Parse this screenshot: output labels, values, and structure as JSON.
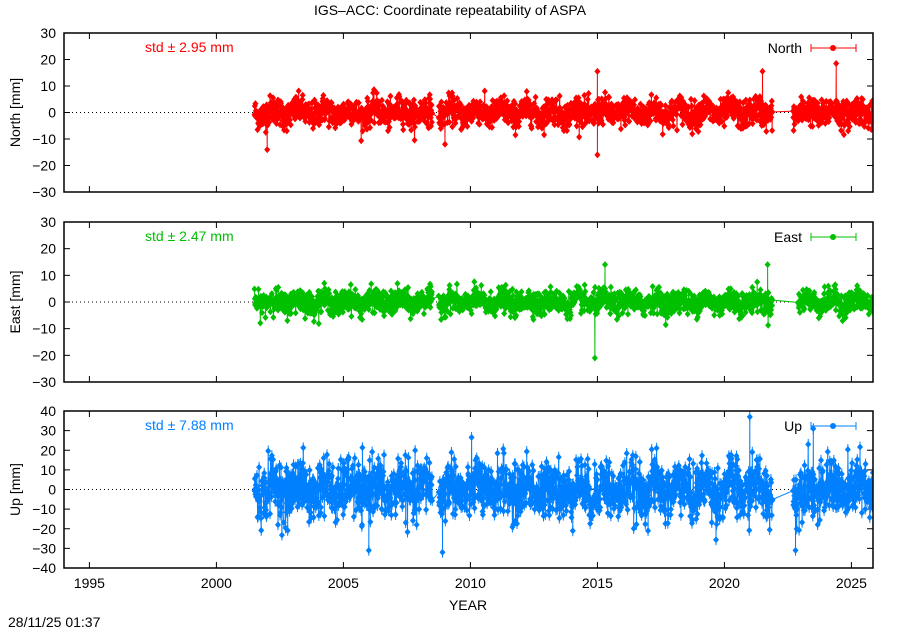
{
  "title": "IGS–ACC: Coordinate repeatability of ASPA",
  "timestamp": "28/11/25 01:37",
  "chart_data": [
    {
      "type": "scatter",
      "series": [
        {
          "name": "North",
          "color": "#ff0000"
        }
      ],
      "ylabel": "North [mm]",
      "std_label": "std ± 2.95 mm",
      "std": 2.95,
      "ylim": [
        -30,
        30
      ],
      "yticks": [
        "30",
        "20",
        "10",
        "0",
        "−10",
        "−20",
        "−30"
      ],
      "ytick_values": [
        30,
        20,
        10,
        0,
        -10,
        -20,
        -30
      ],
      "xlim": [
        1994,
        2025.85
      ],
      "data_spans": [
        [
          2001.5,
          2008.5
        ],
        [
          2008.75,
          2021.9
        ],
        [
          2022.7,
          2025.85
        ]
      ],
      "outliers": [
        [
          2002.0,
          -14
        ],
        [
          2009.0,
          -12
        ],
        [
          2015.0,
          15.5
        ],
        [
          2015.0,
          -16
        ],
        [
          2021.5,
          15.5
        ],
        [
          2024.4,
          18.5
        ]
      ],
      "zero_line": "dotted",
      "legend": "top-right"
    },
    {
      "type": "scatter",
      "series": [
        {
          "name": "East",
          "color": "#00c000"
        }
      ],
      "ylabel": "East [mm]",
      "std_label": "std ± 2.47 mm",
      "std": 2.47,
      "ylim": [
        -30,
        30
      ],
      "yticks": [
        "30",
        "20",
        "10",
        "0",
        "−10",
        "−20",
        "−30"
      ],
      "ytick_values": [
        30,
        20,
        10,
        0,
        -10,
        -20,
        -30
      ],
      "xlim": [
        1994,
        2025.85
      ],
      "data_spans": [
        [
          2001.5,
          2008.5
        ],
        [
          2008.75,
          2021.9
        ],
        [
          2022.9,
          2025.85
        ]
      ],
      "outliers": [
        [
          2014.9,
          -21
        ],
        [
          2015.3,
          14
        ],
        [
          2021.7,
          14
        ]
      ],
      "zero_line": "dotted",
      "legend": "top-right"
    },
    {
      "type": "scatter",
      "series": [
        {
          "name": "Up",
          "color": "#0080ff"
        }
      ],
      "ylabel": "Up [mm]",
      "std_label": "std ± 7.88 mm",
      "std": 7.88,
      "ylim": [
        -40,
        40
      ],
      "yticks": [
        "40",
        "30",
        "20",
        "10",
        "0",
        "−10",
        "−20",
        "−30",
        "−40"
      ],
      "ytick_values": [
        40,
        30,
        20,
        10,
        0,
        -10,
        -20,
        -30,
        -40
      ],
      "xlim": [
        1994,
        2025.85
      ],
      "data_spans": [
        [
          2001.5,
          2008.5
        ],
        [
          2008.75,
          2021.9
        ],
        [
          2022.7,
          2025.85
        ]
      ],
      "outliers": [
        [
          2006.0,
          -31
        ],
        [
          2008.9,
          -32
        ],
        [
          2021.0,
          37
        ],
        [
          2022.8,
          -31
        ],
        [
          2023.5,
          31
        ]
      ],
      "zero_line": "dotted",
      "legend": "top-right",
      "xlabel": "YEAR",
      "xticks": [
        "1995",
        "2000",
        "2005",
        "2010",
        "2015",
        "2020",
        "2025"
      ],
      "xtick_values": [
        1995,
        2000,
        2005,
        2010,
        2015,
        2020,
        2025
      ]
    }
  ]
}
